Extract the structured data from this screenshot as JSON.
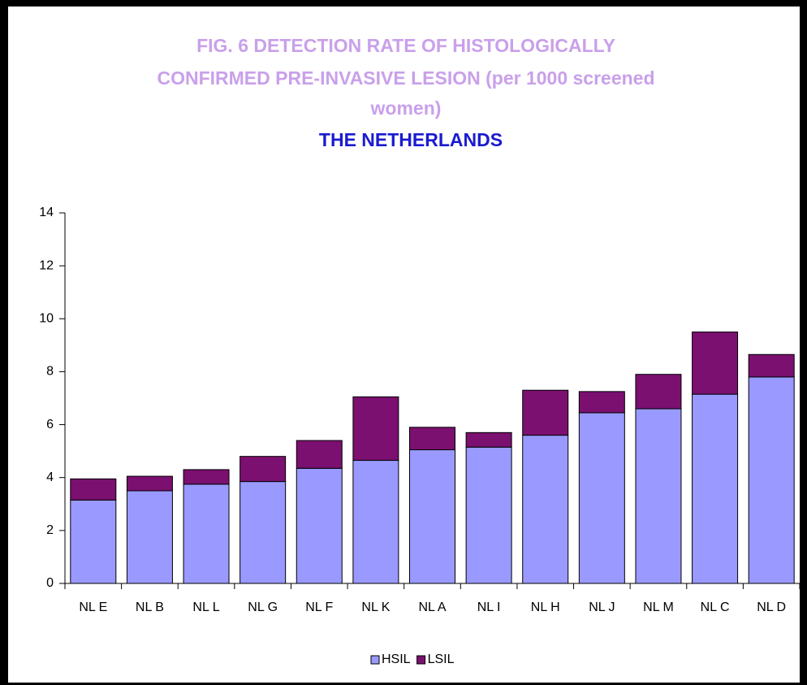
{
  "chart_data": {
    "type": "stacked-bar",
    "title": [
      "FIG. 6 DETECTION RATE OF HISTOLOGICALLY",
      "CONFIRMED PRE-INVASIVE LESION (per 1000 screened",
      "women)"
    ],
    "subtitle": "THE NETHERLANDS",
    "categories": [
      "NL E",
      "NL B",
      "NL L",
      "NL G",
      "NL F",
      "NL K",
      "NL A",
      "NL I",
      "NL H",
      "NL J",
      "NL M",
      "NL C",
      "NL D"
    ],
    "series": [
      {
        "name": "HSIL",
        "color": "#9999ff",
        "values": [
          3.15,
          3.5,
          3.75,
          3.85,
          4.35,
          4.65,
          5.05,
          5.15,
          5.6,
          6.45,
          6.6,
          7.15,
          7.8
        ]
      },
      {
        "name": "LSIL",
        "color": "#7b1070",
        "values": [
          0.8,
          0.55,
          0.55,
          0.95,
          1.05,
          2.4,
          0.85,
          0.55,
          1.7,
          0.8,
          1.3,
          2.35,
          0.85
        ]
      }
    ],
    "ylim": [
      0,
      14
    ],
    "yticks": [
      0,
      2,
      4,
      6,
      8,
      10,
      12,
      14
    ],
    "legend": "bottom"
  }
}
